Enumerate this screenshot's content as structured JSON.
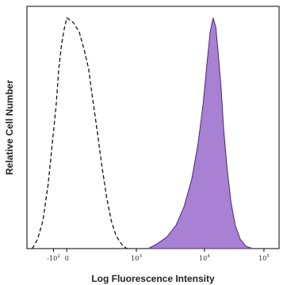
{
  "chart_data": {
    "type": "area",
    "title": "",
    "xlabel": "Log Fluorescence Intensity",
    "ylabel": "Relative Cell Number",
    "xscale": "biexponential",
    "grid": false,
    "legend": "none",
    "xlim": [
      -300,
      300000
    ],
    "ylim": [
      0,
      1.05
    ],
    "x_ticks": [
      {
        "value": -100,
        "base": "-10",
        "exp": "2"
      },
      {
        "value": 0,
        "base": "0",
        "exp": ""
      },
      {
        "value": 1000,
        "base": "10",
        "exp": "3"
      },
      {
        "value": 10000,
        "base": "10",
        "exp": "4"
      },
      {
        "value": 100000,
        "base": "10",
        "exp": "5"
      }
    ],
    "series": [
      {
        "style": "dashed-outline",
        "color": "#111111",
        "x": [
          -260,
          -220,
          -180,
          -140,
          -110,
          -80,
          -60,
          -40,
          -20,
          0,
          20,
          40,
          60,
          80,
          100,
          130,
          170,
          220,
          280,
          350,
          430,
          520,
          620,
          730
        ],
        "y": [
          0.0,
          0.04,
          0.12,
          0.28,
          0.45,
          0.62,
          0.78,
          0.88,
          0.95,
          1.0,
          0.98,
          0.94,
          0.86,
          0.78,
          0.66,
          0.52,
          0.36,
          0.22,
          0.12,
          0.06,
          0.03,
          0.01,
          0.0,
          0.0
        ]
      },
      {
        "style": "filled",
        "color": "#a880d4",
        "stroke": "#4a2a6e",
        "x": [
          1500,
          2000,
          2800,
          3800,
          5000,
          6500,
          8000,
          9500,
          11000,
          12500,
          14000,
          15500,
          17000,
          19000,
          21000,
          24000,
          28000,
          33000,
          40000,
          50000,
          65000
        ],
        "y": [
          0.0,
          0.02,
          0.05,
          0.1,
          0.18,
          0.3,
          0.45,
          0.62,
          0.8,
          0.94,
          1.0,
          0.96,
          0.85,
          0.7,
          0.52,
          0.35,
          0.2,
          0.1,
          0.04,
          0.01,
          0.0
        ]
      }
    ]
  }
}
